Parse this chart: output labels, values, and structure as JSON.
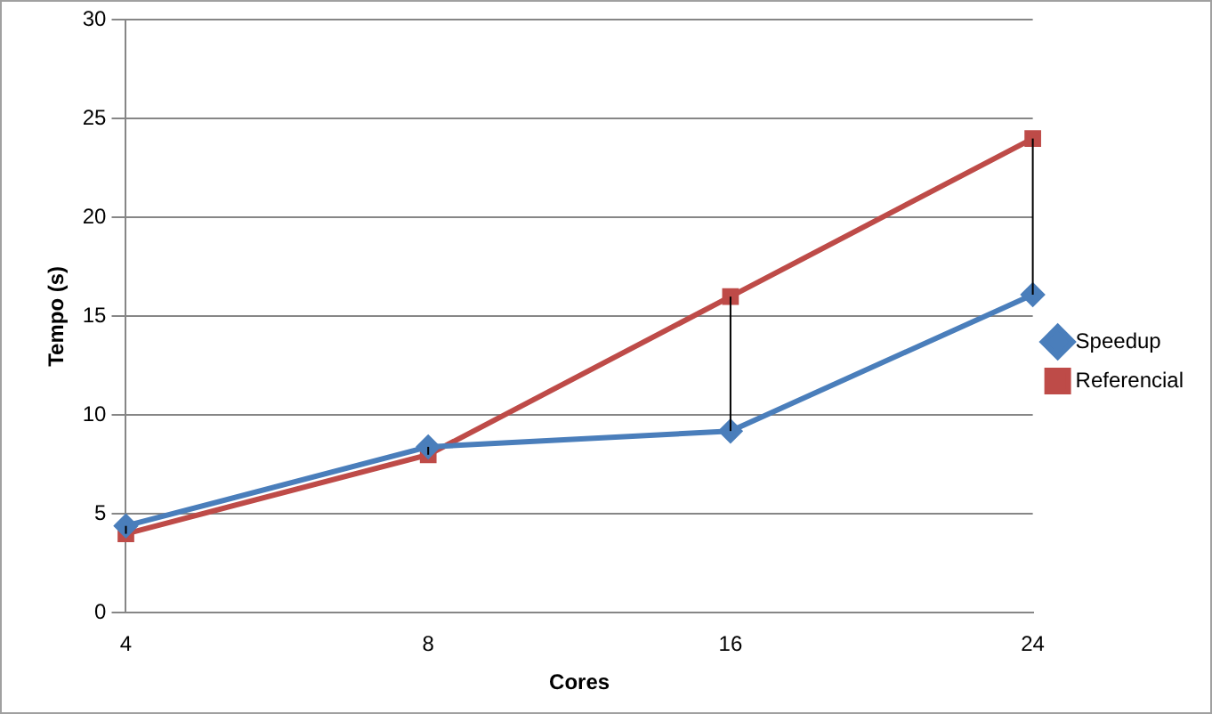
{
  "chart_data": {
    "type": "line",
    "xlabel": "Cores",
    "ylabel": "Tempo (s)",
    "categories": [
      "4",
      "8",
      "16",
      "24"
    ],
    "series": [
      {
        "name": "Speedup",
        "color": "#4a7ebb",
        "marker": "diamond",
        "values": [
          4.4,
          8.4,
          9.2,
          16.1
        ],
        "errors": [
          [
            4,
            4.4
          ],
          [
            8,
            8.4
          ],
          [
            9.2,
            16
          ],
          [
            16.1,
            24
          ]
        ]
      },
      {
        "name": "Referencial",
        "color": "#be4b48",
        "marker": "square",
        "values": [
          4,
          8,
          16,
          24
        ]
      }
    ],
    "ylim": [
      0,
      30
    ],
    "yticks": [
      0,
      5,
      10,
      15,
      20,
      25,
      30
    ],
    "grid": "y",
    "legend": "right"
  }
}
